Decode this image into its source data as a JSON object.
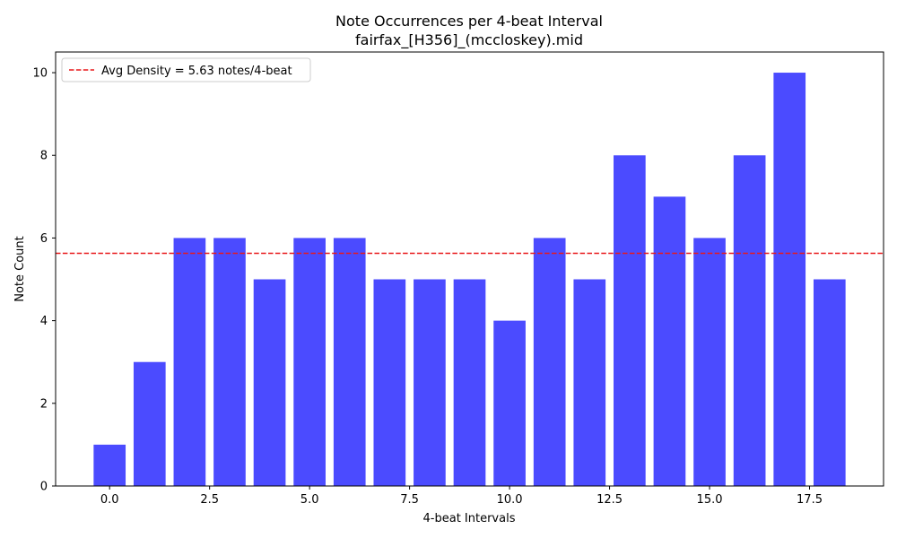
{
  "chart_data": {
    "type": "bar",
    "title": "Note Occurrences per 4-beat Interval",
    "subtitle": "fairfax_[H356]_(mccloskey).mid",
    "xlabel": "4-beat Intervals",
    "ylabel": "Note Count",
    "x": [
      0,
      1,
      2,
      3,
      4,
      5,
      6,
      7,
      8,
      9,
      10,
      11,
      12,
      13,
      14,
      15,
      16,
      17,
      18
    ],
    "values": [
      1,
      3,
      6,
      6,
      5,
      6,
      6,
      5,
      5,
      5,
      4,
      6,
      5,
      8,
      7,
      6,
      8,
      10,
      5
    ],
    "bar_color": "#4b4bff",
    "xlim": [
      -1.35,
      19.35
    ],
    "ylim": [
      0,
      10.5
    ],
    "xticks": [
      "0.0",
      "2.5",
      "5.0",
      "7.5",
      "10.0",
      "12.5",
      "15.0",
      "17.5"
    ],
    "yticks": [
      "0",
      "2",
      "4",
      "6",
      "8",
      "10"
    ],
    "average_line": {
      "value": 5.63,
      "color": "#e8191b",
      "label": "Avg Density = 5.63 notes/4-beat"
    },
    "legend_position": "upper-left",
    "grid": false
  }
}
